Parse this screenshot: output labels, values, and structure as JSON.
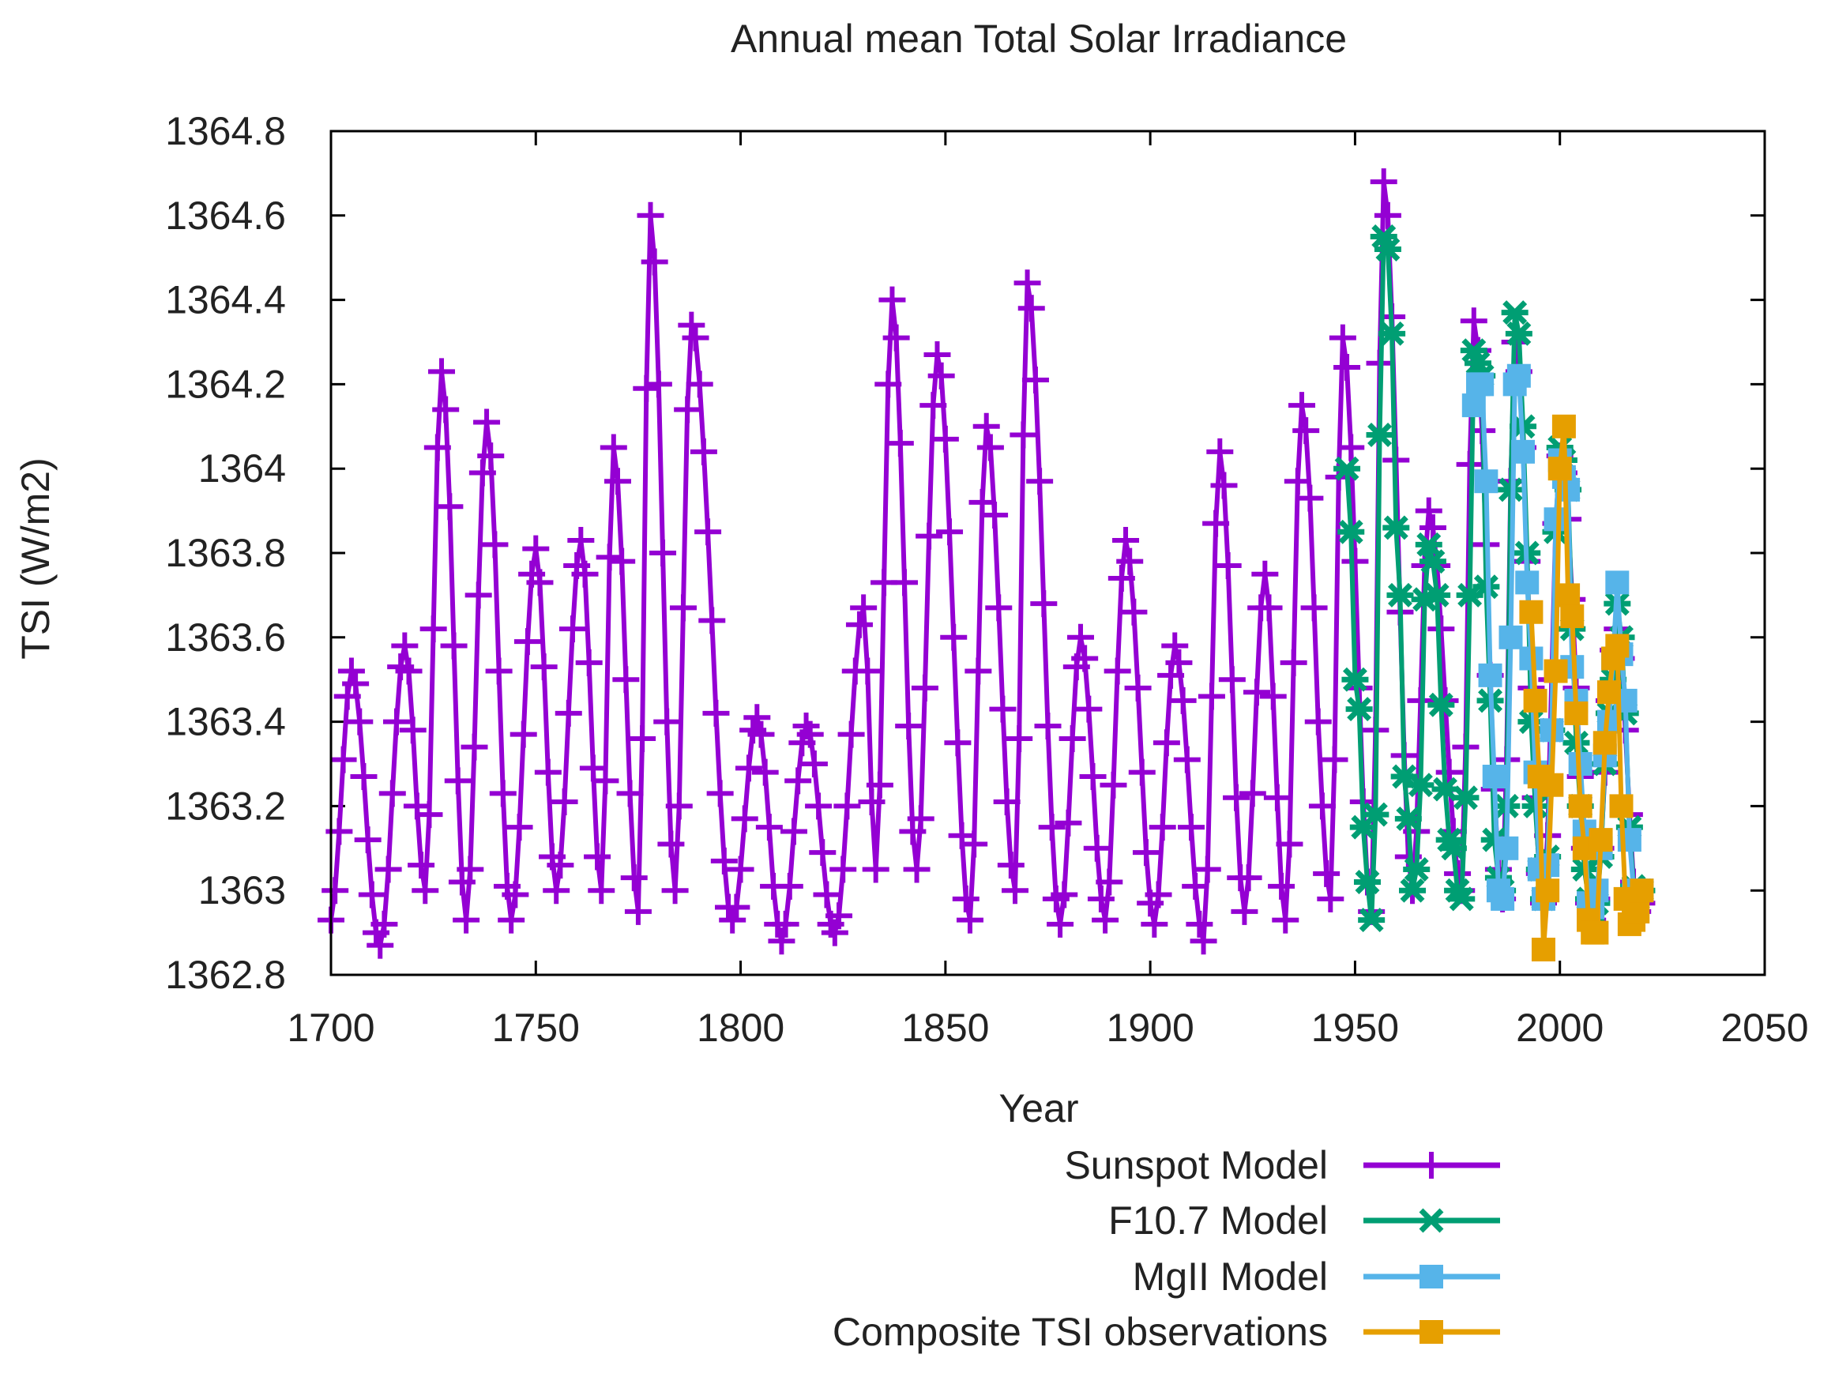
{
  "chart_data": {
    "type": "line",
    "title": "Annual mean Total Solar Irradiance",
    "xlabel": "Year",
    "ylabel": "TSI (W/m2)",
    "xlim": [
      1700,
      2050
    ],
    "ylim": [
      1362.8,
      1364.8
    ],
    "xticks": [
      1700,
      1750,
      1800,
      1850,
      1900,
      1950,
      2000,
      2050
    ],
    "xtick_labels": [
      "1700",
      "1750",
      "1800",
      "1850",
      "1900",
      "1950",
      "2000",
      "2050"
    ],
    "yticks": [
      1362.8,
      1363,
      1363.2,
      1363.4,
      1363.6,
      1363.8,
      1364,
      1364.2,
      1364.4,
      1364.6,
      1364.8
    ],
    "ytick_labels": [
      "1362.8",
      "1363",
      "1363.2",
      "1363.4",
      "1363.6",
      "1363.8",
      "1364",
      "1364.2",
      "1364.4",
      "1364.6",
      "1364.8"
    ],
    "grid": false,
    "legend_placement": "bottom-center-below",
    "series": [
      {
        "name": "Sunspot Model",
        "color": "#9400d3",
        "marker": "plus",
        "start_year": 1700,
        "values": [
          1362.93,
          1363.0,
          1363.14,
          1363.31,
          1363.46,
          1363.52,
          1363.49,
          1363.4,
          1363.27,
          1363.12,
          1362.99,
          1362.9,
          1362.87,
          1362.92,
          1363.05,
          1363.23,
          1363.4,
          1363.53,
          1363.58,
          1363.52,
          1363.38,
          1363.2,
          1363.06,
          1363.0,
          1363.18,
          1363.62,
          1364.05,
          1364.23,
          1364.14,
          1363.91,
          1363.58,
          1363.26,
          1363.02,
          1362.93,
          1363.05,
          1363.34,
          1363.7,
          1363.99,
          1364.11,
          1364.03,
          1363.82,
          1363.52,
          1363.23,
          1363.01,
          1362.93,
          1362.99,
          1363.15,
          1363.37,
          1363.59,
          1363.75,
          1363.81,
          1363.73,
          1363.53,
          1363.28,
          1363.08,
          1363.0,
          1363.06,
          1363.21,
          1363.42,
          1363.62,
          1363.77,
          1363.83,
          1363.75,
          1363.54,
          1363.29,
          1363.08,
          1363.0,
          1363.26,
          1363.79,
          1364.05,
          1363.97,
          1363.78,
          1363.5,
          1363.23,
          1363.03,
          1362.95,
          1363.36,
          1364.19,
          1364.6,
          1364.49,
          1364.2,
          1363.8,
          1363.4,
          1363.11,
          1363.0,
          1363.2,
          1363.67,
          1364.14,
          1364.34,
          1364.31,
          1364.2,
          1364.04,
          1363.85,
          1363.64,
          1363.42,
          1363.23,
          1363.07,
          1362.96,
          1362.93,
          1362.96,
          1363.05,
          1363.17,
          1363.29,
          1363.38,
          1363.41,
          1363.37,
          1363.28,
          1363.15,
          1363.01,
          1362.92,
          1362.88,
          1362.92,
          1363.01,
          1363.14,
          1363.26,
          1363.35,
          1363.39,
          1363.37,
          1363.3,
          1363.2,
          1363.09,
          1362.99,
          1362.92,
          1362.9,
          1362.94,
          1363.05,
          1363.2,
          1363.37,
          1363.52,
          1363.63,
          1363.67,
          1363.52,
          1363.21,
          1363.05,
          1363.25,
          1363.73,
          1364.2,
          1364.4,
          1364.31,
          1364.06,
          1363.73,
          1363.39,
          1363.14,
          1363.05,
          1363.17,
          1363.48,
          1363.84,
          1364.15,
          1364.27,
          1364.22,
          1364.07,
          1363.85,
          1363.6,
          1363.35,
          1363.13,
          1362.98,
          1362.93,
          1363.11,
          1363.52,
          1363.92,
          1364.1,
          1364.05,
          1363.89,
          1363.67,
          1363.43,
          1363.21,
          1363.06,
          1363.0,
          1363.36,
          1364.08,
          1364.44,
          1364.38,
          1364.21,
          1363.97,
          1363.68,
          1363.39,
          1363.15,
          1362.98,
          1362.92,
          1362.99,
          1363.16,
          1363.36,
          1363.53,
          1363.6,
          1363.55,
          1363.43,
          1363.27,
          1363.1,
          1362.98,
          1362.93,
          1363.02,
          1363.25,
          1363.52,
          1363.74,
          1363.83,
          1363.78,
          1363.66,
          1363.48,
          1363.28,
          1363.09,
          1362.97,
          1362.92,
          1362.99,
          1363.15,
          1363.35,
          1363.51,
          1363.58,
          1363.54,
          1363.45,
          1363.31,
          1363.15,
          1363.01,
          1362.92,
          1362.88,
          1363.05,
          1363.46,
          1363.87,
          1364.04,
          1363.96,
          1363.77,
          1363.5,
          1363.22,
          1363.03,
          1362.95,
          1363.03,
          1363.23,
          1363.47,
          1363.67,
          1363.75,
          1363.67,
          1363.46,
          1363.22,
          1363.01,
          1362.93,
          1363.11,
          1363.54,
          1363.97,
          1364.15,
          1364.09,
          1363.93,
          1363.67,
          1363.4,
          1363.2,
          1363.04,
          1362.98,
          1363.31,
          1363.98,
          1364.31,
          1364.24,
          1364.05,
          1363.78,
          1363.48,
          1363.21,
          1363.02,
          1362.95,
          1363.38,
          1364.25,
          1364.68,
          1364.6,
          1364.36,
          1364.02,
          1363.66,
          1363.32,
          1363.08,
          1363.0,
          1363.14,
          1363.45,
          1363.77,
          1363.9,
          1363.86,
          1363.77,
          1363.62,
          1363.45,
          1363.28,
          1363.14,
          1363.04,
          1363.0,
          1363.34,
          1364.01,
          1364.35,
          1364.28,
          1364.09,
          1363.82,
          1363.51,
          1363.24,
          1363.05,
          1362.98,
          1363.31,
          1363.97,
          1364.3,
          1364.23,
          1364.05,
          1363.78,
          1363.48,
          1363.22,
          1363.04,
          1362.97,
          1363.13,
          1363.5,
          1363.87,
          1364.03,
          1363.99,
          1363.88,
          1363.69,
          1363.48,
          1363.27,
          1363.1,
          1362.97,
          1362.93,
          1362.98,
          1363.1,
          1363.28,
          1363.45,
          1363.57,
          1363.62,
          1363.55,
          1363.38,
          1363.18,
          1363.02,
          1362.95,
          1362.97
        ]
      },
      {
        "name": "F10.7 Model",
        "color": "#009e73",
        "marker": "star",
        "start_year": 1948,
        "values": [
          1364.0,
          1363.85,
          1363.5,
          1363.43,
          1363.15,
          1363.02,
          1362.93,
          1363.18,
          1364.08,
          1364.55,
          1364.52,
          1364.32,
          1363.86,
          1363.7,
          1363.27,
          1363.17,
          1363.0,
          1363.05,
          1363.25,
          1363.69,
          1363.82,
          1363.78,
          1363.7,
          1363.44,
          1363.24,
          1363.12,
          1363.1,
          1363.0,
          1362.98,
          1363.22,
          1363.7,
          1364.28,
          1364.25,
          1364.22,
          1363.72,
          1363.45,
          1363.12,
          1363.03,
          1363.0,
          1363.2,
          1363.95,
          1364.37,
          1364.32,
          1364.1,
          1363.8,
          1363.4,
          1363.2,
          1363.05,
          1362.98,
          1363.08,
          1363.38,
          1363.85,
          1364.05,
          1364.02,
          1363.95,
          1363.62,
          1363.35,
          1363.2,
          1363.05,
          1362.98,
          1362.95,
          1362.97,
          1363.08,
          1363.3,
          1363.42,
          1363.5,
          1363.68,
          1363.6,
          1363.42,
          1363.15,
          1363.01,
          1362.98,
          1363.0
        ]
      },
      {
        "name": "MgII Model",
        "color": "#56b4e9",
        "marker": "square",
        "start_year": 1979,
        "values": [
          1364.15,
          1364.2,
          1364.2,
          1363.97,
          1363.51,
          1363.27,
          1363.0,
          1362.98,
          1363.1,
          1363.6,
          1364.2,
          1364.22,
          1364.04,
          1363.73,
          1363.55,
          1363.28,
          1363.05,
          1362.98,
          1363.06,
          1363.38,
          1363.88,
          1364.02,
          1363.98,
          1363.95,
          1363.53,
          1363.45,
          1363.3,
          1363.14,
          1362.97,
          1362.96,
          1363.0,
          1363.1,
          1363.32,
          1363.4,
          1363.55,
          1363.73,
          1363.56,
          1363.45,
          1363.12,
          1363.0,
          1363.0,
          1363.0
        ]
      },
      {
        "name": "Composite TSI observations",
        "color": "#e69f00",
        "marker": "square",
        "start_year": 1993,
        "values": [
          1363.66,
          1363.45,
          1363.27,
          1362.86,
          1363.0,
          1363.25,
          1363.52,
          1364.0,
          1364.1,
          1363.7,
          1363.65,
          1363.42,
          1363.2,
          1363.1,
          1362.93,
          1362.9,
          1362.9,
          1363.12,
          1363.35,
          1363.47,
          1363.55,
          1363.58,
          1363.2,
          1362.98,
          1362.92,
          1362.93,
          1362.95,
          1363.0
        ]
      }
    ]
  }
}
